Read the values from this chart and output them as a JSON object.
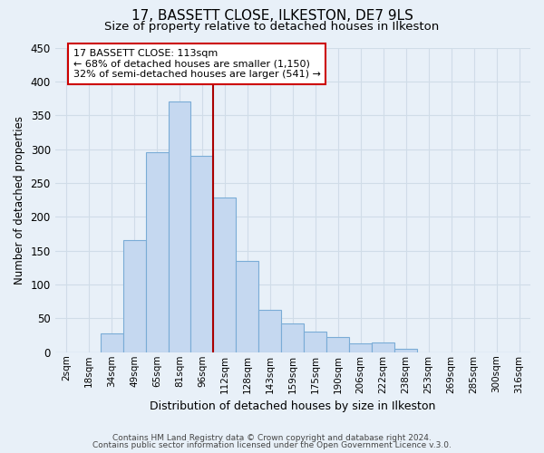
{
  "title": "17, BASSETT CLOSE, ILKESTON, DE7 9LS",
  "subtitle": "Size of property relative to detached houses in Ilkeston",
  "xlabel": "Distribution of detached houses by size in Ilkeston",
  "ylabel": "Number of detached properties",
  "bar_labels": [
    "2sqm",
    "18sqm",
    "34sqm",
    "49sqm",
    "65sqm",
    "81sqm",
    "96sqm",
    "112sqm",
    "128sqm",
    "143sqm",
    "159sqm",
    "175sqm",
    "190sqm",
    "206sqm",
    "222sqm",
    "238sqm",
    "253sqm",
    "269sqm",
    "285sqm",
    "300sqm",
    "316sqm"
  ],
  "bar_heights": [
    0,
    0,
    28,
    165,
    295,
    370,
    290,
    228,
    135,
    62,
    43,
    30,
    23,
    13,
    15,
    5,
    0,
    0,
    0,
    0,
    0
  ],
  "bar_color": "#c5d8f0",
  "bar_edge_color": "#7aacd6",
  "vline_index": 7,
  "annotation_title": "17 BASSETT CLOSE: 113sqm",
  "annotation_line1": "← 68% of detached houses are smaller (1,150)",
  "annotation_line2": "32% of semi-detached houses are larger (541) →",
  "vline_color": "#aa0000",
  "ylim": [
    0,
    450
  ],
  "yticks": [
    0,
    50,
    100,
    150,
    200,
    250,
    300,
    350,
    400,
    450
  ],
  "footer1": "Contains HM Land Registry data © Crown copyright and database right 2024.",
  "footer2": "Contains public sector information licensed under the Open Government Licence v.3.0.",
  "background_color": "#e8f0f8",
  "plot_bg_color": "#e8f0f8",
  "grid_color": "#d0dce8",
  "title_fontsize": 11,
  "subtitle_fontsize": 9.5,
  "annotation_box_edge_color": "#cc0000",
  "annotation_box_face_color": "#ffffff"
}
